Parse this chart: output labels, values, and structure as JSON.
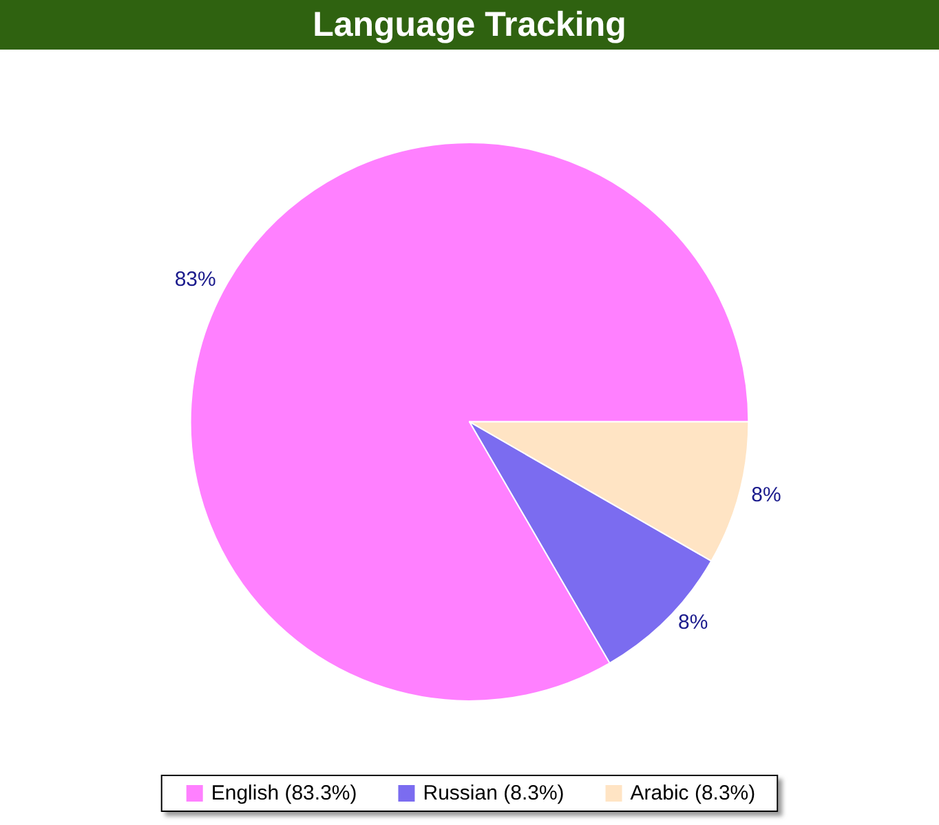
{
  "chart_data": {
    "type": "pie",
    "title": "Language Tracking",
    "categories": [
      "English (83.3%)",
      "Russian (8.3%)",
      "Arabic (8.3%)"
    ],
    "values": [
      83.3,
      8.3,
      8.3
    ],
    "colors": [
      "#ff80ff",
      "#7b6cf0",
      "#ffe4c4"
    ],
    "value_labels": [
      "83%",
      "8%",
      "8%"
    ],
    "legend": "bottom"
  }
}
